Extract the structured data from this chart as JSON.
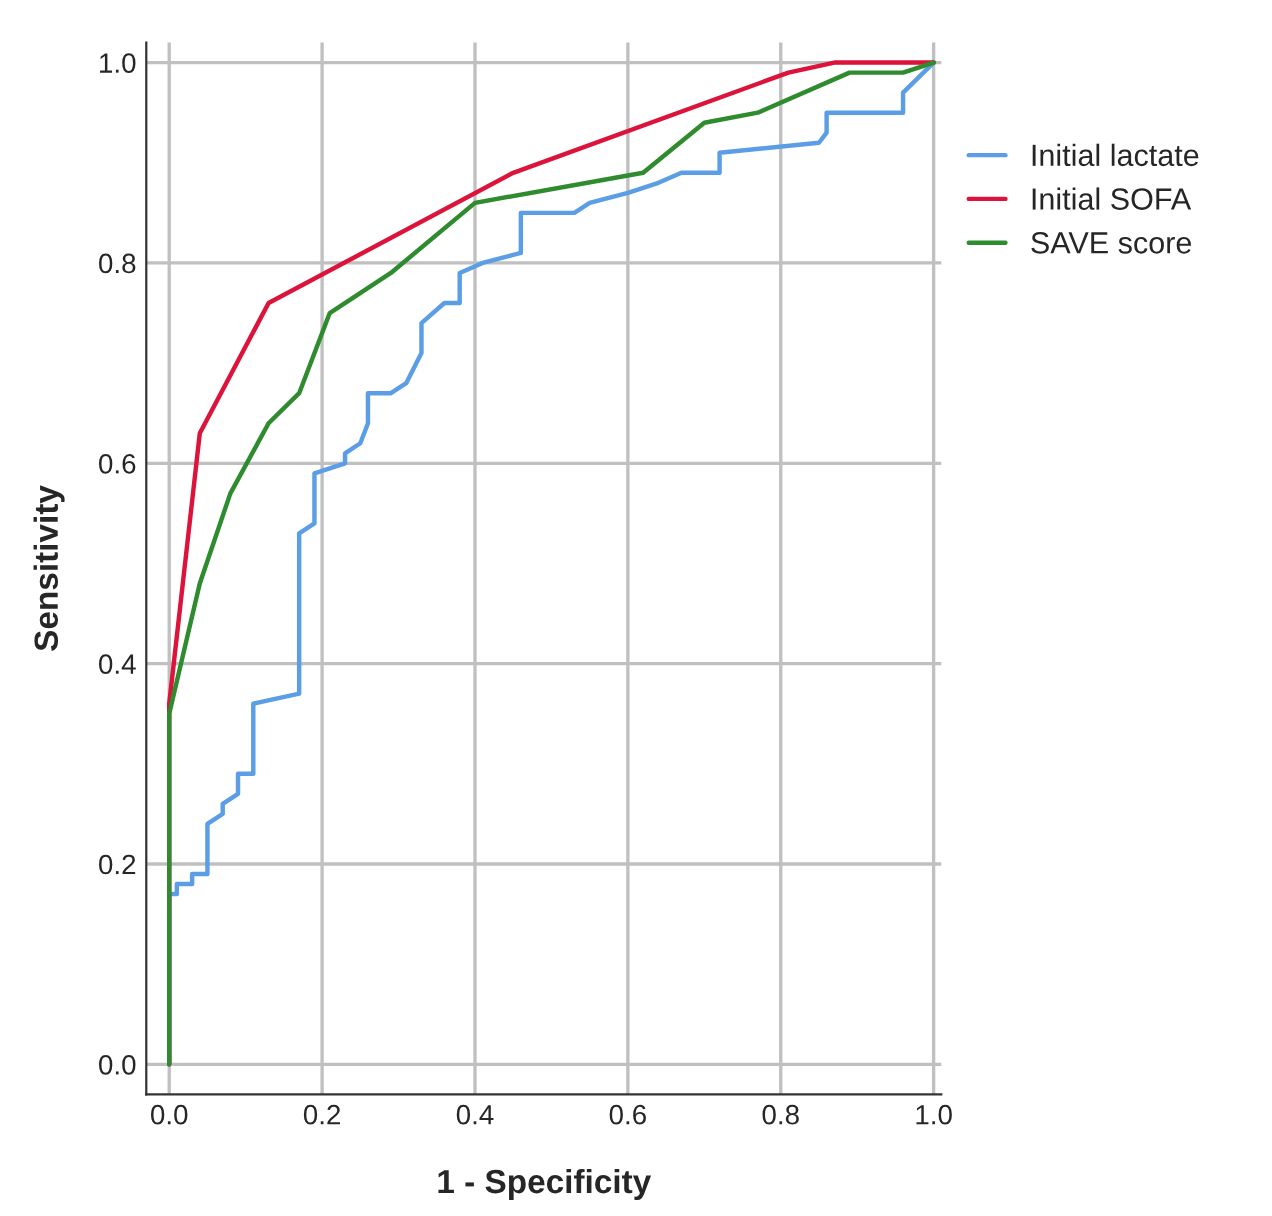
{
  "chart_data": {
    "type": "line",
    "xlabel": "1 - Specificity",
    "ylabel": "Sensitivity",
    "xlim": [
      -0.03,
      1.01
    ],
    "ylim": [
      -0.03,
      1.02
    ],
    "xticks": [
      {
        "value": 0,
        "label": "0.0"
      },
      0.2,
      0.4,
      0.6,
      0.8,
      {
        "value": 1,
        "label": "1.0"
      }
    ],
    "yticks": [
      {
        "value": 0,
        "label": "0.0"
      },
      0.2,
      0.4,
      0.6,
      0.8,
      {
        "value": 1,
        "label": "1.0"
      }
    ],
    "grid": true,
    "legend": "top right",
    "line_style": "solid",
    "series": [
      {
        "name": "Initial lactate",
        "color": "#5b9ee6",
        "x": [
          0,
          0,
          0.01,
          0.01,
          0.03,
          0.03,
          0.05,
          0.05,
          0.07,
          0.07,
          0.09,
          0.09,
          0.11,
          0.11,
          0.17,
          0.17,
          0.19,
          0.19,
          0.23,
          0.23,
          0.25,
          0.26,
          0.26,
          0.29,
          0.31,
          0.33,
          0.33,
          0.36,
          0.38,
          0.38,
          0.41,
          0.46,
          0.46,
          0.53,
          0.55,
          0.6,
          0.64,
          0.67,
          0.72,
          0.72,
          0.85,
          0.86,
          0.86,
          0.96,
          0.96,
          1
        ],
        "values": [
          0,
          0.17,
          0.17,
          0.18,
          0.18,
          0.19,
          0.19,
          0.24,
          0.25,
          0.26,
          0.27,
          0.29,
          0.29,
          0.36,
          0.37,
          0.53,
          0.54,
          0.59,
          0.6,
          0.61,
          0.62,
          0.64,
          0.67,
          0.67,
          0.68,
          0.71,
          0.74,
          0.76,
          0.76,
          0.79,
          0.8,
          0.81,
          0.85,
          0.85,
          0.86,
          0.87,
          0.88,
          0.89,
          0.89,
          0.91,
          0.92,
          0.93,
          0.95,
          0.95,
          0.97,
          1
        ]
      },
      {
        "name": "Initial SOFA",
        "color": "#dc143c",
        "x": [
          0,
          0,
          0.04,
          0.13,
          0.45,
          0.81,
          0.87,
          1
        ],
        "values": [
          0,
          0.36,
          0.63,
          0.76,
          0.89,
          0.99,
          1,
          1
        ]
      },
      {
        "name": "SAVE score",
        "color": "#2e8b2e",
        "x": [
          0,
          0,
          0.04,
          0.08,
          0.13,
          0.17,
          0.21,
          0.29,
          0.4,
          0.62,
          0.7,
          0.77,
          0.89,
          0.96,
          1
        ],
        "values": [
          0,
          0.35,
          0.48,
          0.57,
          0.64,
          0.67,
          0.75,
          0.79,
          0.86,
          0.89,
          0.94,
          0.95,
          0.99,
          0.99,
          1
        ]
      }
    ]
  }
}
